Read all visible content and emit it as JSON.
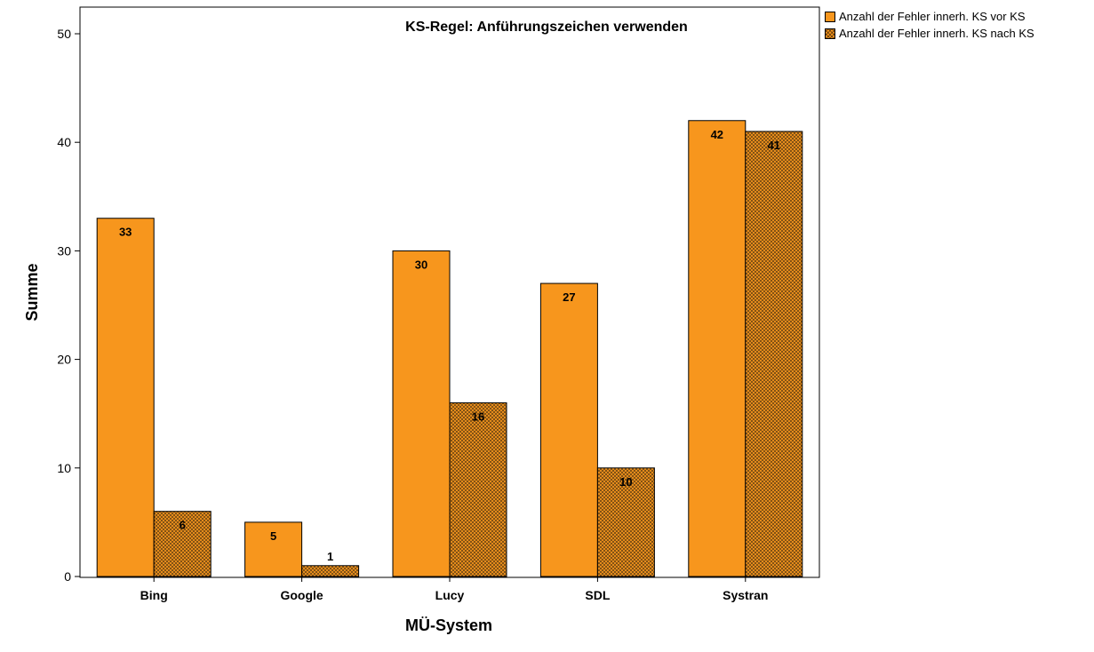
{
  "chart_data": {
    "type": "bar",
    "title": "KS-Regel: Anführungszeichen verwenden",
    "xlabel": "MÜ-System",
    "ylabel": "Summe",
    "categories": [
      "Bing",
      "Google",
      "Lucy",
      "SDL",
      "Systran"
    ],
    "ylim": [
      0,
      52
    ],
    "yticks": [
      "0",
      "10",
      "20",
      "30",
      "40",
      "50"
    ],
    "grid": false,
    "legend_position": "top-right, outside plot",
    "series": [
      {
        "name": "Anzahl der Fehler innerh. KS vor KS",
        "values": [
          33,
          5,
          30,
          27,
          42
        ],
        "labels": [
          "33",
          "5",
          "30",
          "27",
          "42"
        ],
        "color": "#f7961d",
        "pattern": "solid"
      },
      {
        "name": "Anzahl der Fehler innerh. KS nach KS",
        "values": [
          6,
          1,
          16,
          10,
          41
        ],
        "labels": [
          "6",
          "1",
          "16",
          "10",
          "41"
        ],
        "color": "#f7961d",
        "pattern": "crosshatch"
      }
    ]
  }
}
